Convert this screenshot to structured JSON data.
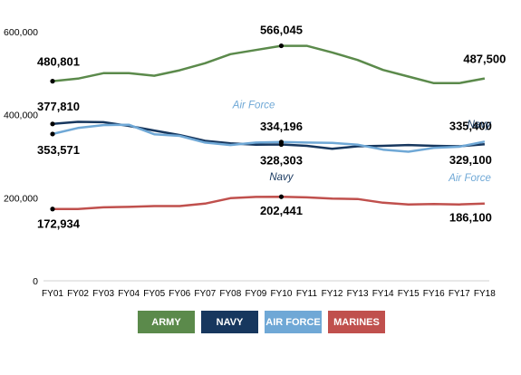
{
  "chart_data": {
    "type": "line",
    "categories": [
      "FY01",
      "FY02",
      "FY03",
      "FY04",
      "FY05",
      "FY06",
      "FY07",
      "FY08",
      "FY09",
      "FY10",
      "FY11",
      "FY12",
      "FY13",
      "FY14",
      "FY15",
      "FY16",
      "FY17",
      "FY18"
    ],
    "ylim": [
      0,
      600000
    ],
    "yticks": [
      "0",
      "200,000",
      "400,000",
      "600,000"
    ],
    "ytick_values": [
      0,
      200000,
      400000,
      600000
    ],
    "grid": false,
    "series": [
      {
        "name": "ARMY",
        "color": "#5b8a4b",
        "values": [
          480801,
          487000,
          500000,
          500000,
          494000,
          507000,
          524000,
          546000,
          556000,
          566045,
          566000,
          550000,
          532000,
          508000,
          492000,
          476000,
          476000,
          487500
        ]
      },
      {
        "name": "NAVY",
        "color": "#17375e",
        "values": [
          377810,
          383000,
          382000,
          373000,
          362000,
          351000,
          337000,
          331000,
          328000,
          328303,
          325000,
          318000,
          324000,
          325000,
          327000,
          325000,
          324000,
          329100
        ]
      },
      {
        "name": "AIR FORCE",
        "color": "#6fa8d6",
        "values": [
          353571,
          368000,
          375000,
          376000,
          353000,
          349000,
          333000,
          327000,
          333000,
          334196,
          333000,
          332000,
          328000,
          316000,
          311000,
          320000,
          323000,
          335400
        ]
      },
      {
        "name": "MARINES",
        "color": "#c0504d",
        "values": [
          172934,
          173000,
          177000,
          178000,
          180000,
          180000,
          186000,
          199000,
          202000,
          202441,
          201000,
          198000,
          197000,
          188000,
          184000,
          185000,
          184000,
          186100
        ]
      }
    ],
    "data_labels": [
      {
        "text": "480,801",
        "series": 0,
        "index": 0
      },
      {
        "text": "566,045",
        "series": 0,
        "index": 9
      },
      {
        "text": "487,500",
        "series": 0,
        "index": 17
      },
      {
        "text": "377,810",
        "series": 1,
        "index": 0
      },
      {
        "text": "353,571",
        "series": 2,
        "index": 0
      },
      {
        "text": "334,196",
        "series": 2,
        "index": 9
      },
      {
        "text": "328,303",
        "series": 1,
        "index": 9
      },
      {
        "text": "335,400",
        "series": 2,
        "index": 17
      },
      {
        "text": "329,100",
        "series": 1,
        "index": 17
      },
      {
        "text": "172,934",
        "series": 3,
        "index": 0
      },
      {
        "text": "202,441",
        "series": 3,
        "index": 9
      },
      {
        "text": "186,100",
        "series": 3,
        "index": 17
      }
    ],
    "annotations": [
      {
        "text": "Air Force",
        "series": 2
      },
      {
        "text": "Navy",
        "series": 1
      },
      {
        "text": "Navy",
        "series": 1
      },
      {
        "text": "Air Force",
        "series": 2
      }
    ],
    "legend": {
      "placement": "bottom",
      "items": [
        "ARMY",
        "NAVY",
        "AIR FORCE",
        "MARINES"
      ]
    }
  }
}
